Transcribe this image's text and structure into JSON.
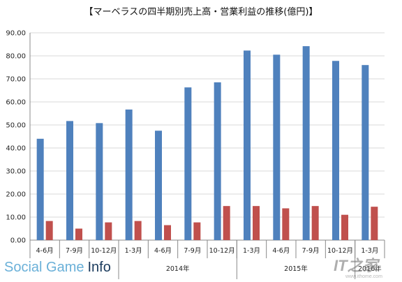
{
  "chart_data": {
    "type": "bar",
    "title": "【マーベラスの四半期別売上高・営業利益の推移(億円)】",
    "categories": [
      "4-6月",
      "7-9月",
      "10-12月",
      "1-3月",
      "4-6月",
      "7-9月",
      "10-12月",
      "1-3月",
      "4-6月",
      "7-9月",
      "10-12月",
      "1-3月"
    ],
    "year_groups": [
      {
        "label": "",
        "start": 0,
        "end": 3
      },
      {
        "label": "2014年",
        "start": 3,
        "end": 7
      },
      {
        "label": "2015年",
        "start": 7,
        "end": 11
      },
      {
        "label": "2016年",
        "start": 11,
        "end": 12
      }
    ],
    "series": [
      {
        "name": "",
        "color": "#4F81BD",
        "values": [
          44.0,
          51.7,
          50.8,
          56.7,
          47.5,
          66.3,
          68.5,
          82.3,
          80.5,
          84.2,
          77.8,
          76.0
        ]
      },
      {
        "name": "",
        "color": "#C0504D",
        "values": [
          8.3,
          5.0,
          7.7,
          8.3,
          6.5,
          7.7,
          14.8,
          14.8,
          13.8,
          14.8,
          11.0,
          14.5
        ]
      }
    ],
    "ylim": [
      0,
      90
    ],
    "yticks": [
      "0.00",
      "10.00",
      "20.00",
      "30.00",
      "40.00",
      "50.00",
      "60.00",
      "70.00",
      "80.00",
      "90.00"
    ],
    "grid": true,
    "xlabel": "",
    "ylabel": ""
  },
  "branding": {
    "logo_part1": "Social Game",
    "logo_part2": "Info",
    "logo_color1": "#6ab0d8",
    "logo_color2": "#1a3a5c",
    "watermark": "IT之家",
    "watermark_url": "www.ithome.com"
  },
  "colors": {
    "grid": "#d9d9d9",
    "axis": "#888888"
  }
}
